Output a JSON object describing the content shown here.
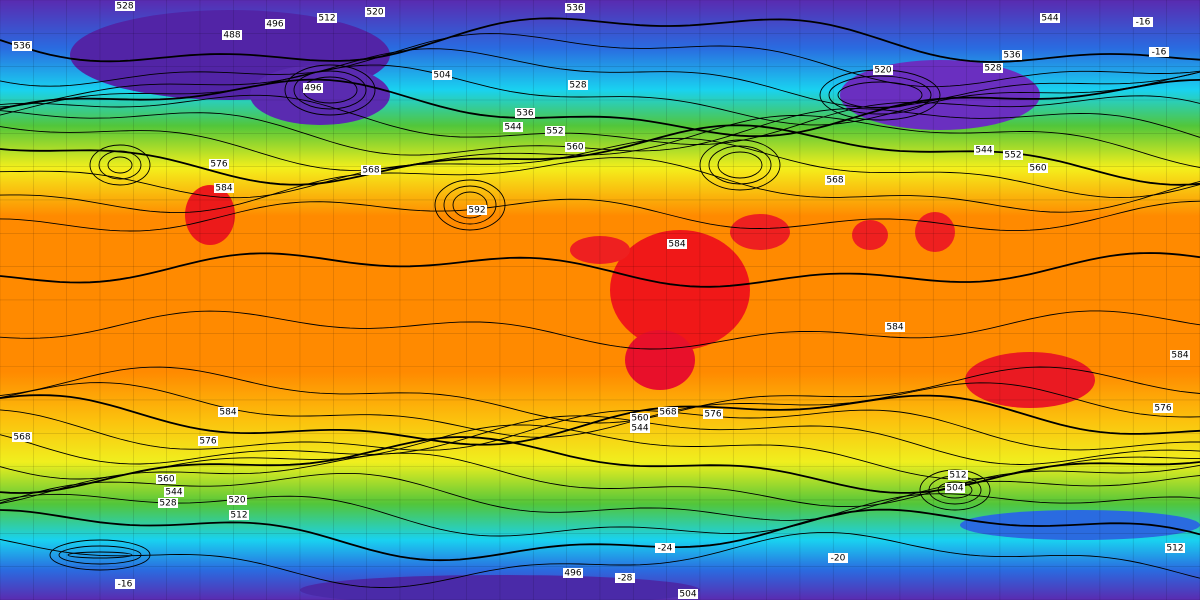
{
  "contour_labels": [
    "528",
    "520",
    "512",
    "496",
    "488",
    "536",
    "504",
    "496",
    "528",
    "536",
    "544",
    "552",
    "560",
    "568",
    "576",
    "584",
    "592",
    "584",
    "520",
    "528",
    "536",
    "544",
    "552",
    "560",
    "568",
    "584",
    "584",
    "576",
    "584",
    "576",
    "568",
    "560",
    "544",
    "528",
    "520",
    "512",
    "576",
    "568",
    "560",
    "544",
    "512",
    "504",
    "496",
    "504",
    "512",
    "536",
    "544",
    "-16",
    "-16",
    "-16",
    "-24",
    "-28",
    "-20"
  ]
}
